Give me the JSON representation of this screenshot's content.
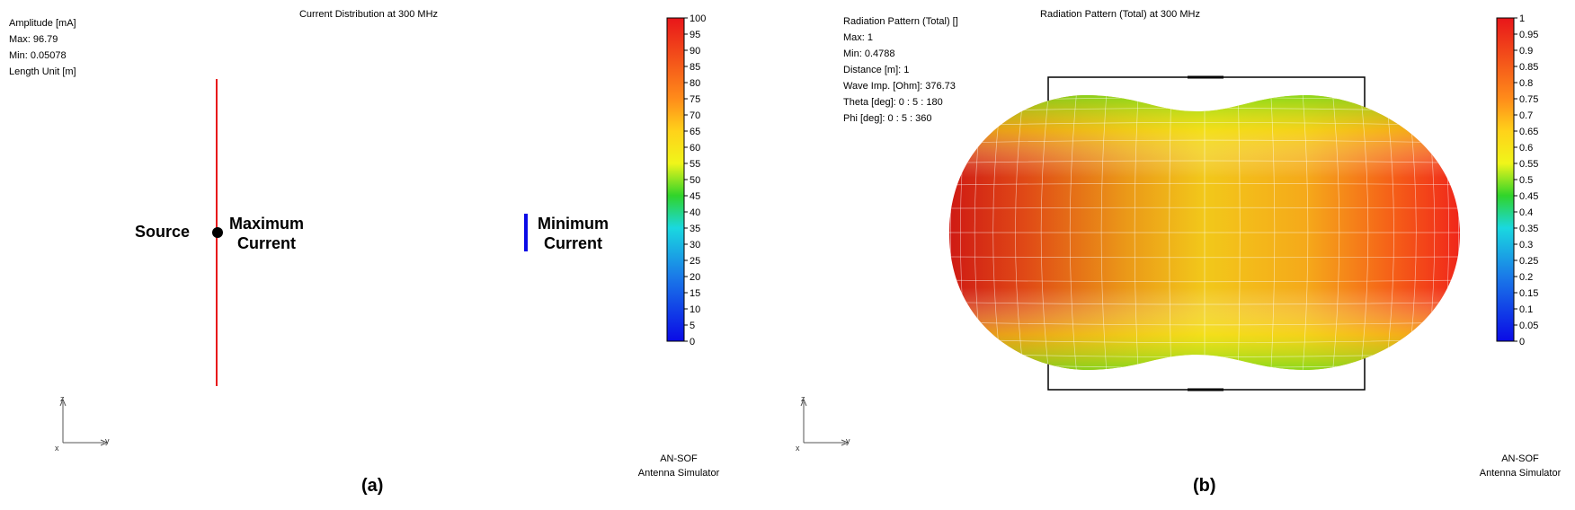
{
  "panel_a": {
    "title": "Current Distribution at 300 MHz",
    "info": [
      "Amplitude [mA]",
      "Max: 96.79",
      "Min: 0.05078",
      "Length Unit [m]"
    ],
    "labels": {
      "source": "Source",
      "max_current": [
        "Maximum",
        "Current"
      ],
      "min_current": [
        "Minimum",
        "Current"
      ]
    },
    "colorbar_ticks": [
      "100",
      "95",
      "90",
      "85",
      "80",
      "75",
      "70",
      "65",
      "60",
      "55",
      "50",
      "45",
      "40",
      "35",
      "30",
      "25",
      "20",
      "15",
      "10",
      "5",
      "0"
    ],
    "axes": {
      "z": "z",
      "y": "y",
      "x": "x"
    },
    "brand": [
      "AN-SOF",
      "Antenna Simulator"
    ],
    "caption": "(a)"
  },
  "panel_b": {
    "title": "Radiation Pattern (Total) at 300 MHz",
    "info": [
      "Radiation Pattern (Total) []",
      "Max: 1",
      "Min: 0.4788",
      "Distance [m]: 1",
      "Wave Imp. [Ohm]: 376.73",
      "Theta [deg]: 0 : 5 : 180",
      "Phi [deg]: 0 : 5 : 360"
    ],
    "colorbar_ticks": [
      "1",
      "0.95",
      "0.9",
      "0.85",
      "0.8",
      "0.75",
      "0.7",
      "0.65",
      "0.6",
      "0.55",
      "0.5",
      "0.45",
      "0.4",
      "0.35",
      "0.3",
      "0.25",
      "0.2",
      "0.15",
      "0.1",
      "0.05",
      "0"
    ],
    "axes": {
      "z": "z",
      "y": "y",
      "x": "x"
    },
    "brand": [
      "AN-SOF",
      "Antenna Simulator"
    ],
    "caption": "(b)"
  },
  "colors": {
    "cb_top": "#e8161a",
    "cb_orange": "#ff8c1a",
    "cb_yellow": "#ffff1a",
    "cb_green": "#30d42a",
    "cb_cyan": "#1ad8e0",
    "cb_blue": "#0a0ae6"
  }
}
